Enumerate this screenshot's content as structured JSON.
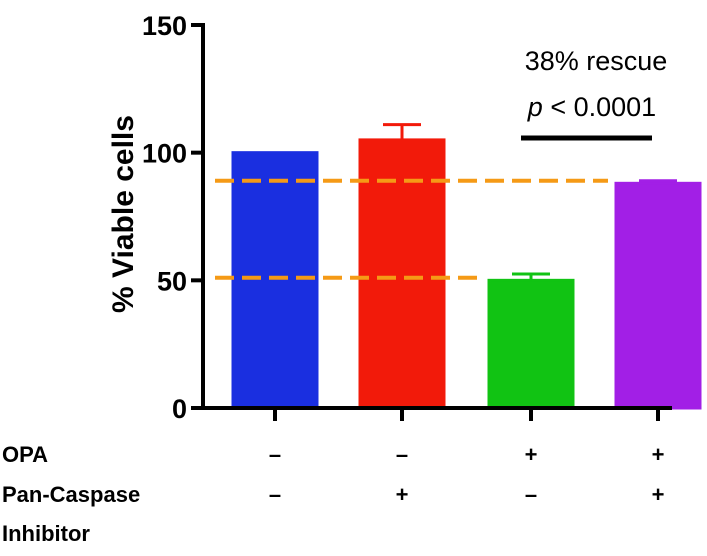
{
  "chart_data": {
    "type": "bar",
    "ylabel": "% Viable cells",
    "ylim": [
      0,
      150
    ],
    "yticks": [
      "0",
      "50",
      "100",
      "150"
    ],
    "bars": [
      {
        "value": 100,
        "error": 0,
        "color": "#1a2fe0"
      },
      {
        "value": 105,
        "error": 6,
        "color": "#f21a0a"
      },
      {
        "value": 50,
        "error": 2.5,
        "color": "#11c313"
      },
      {
        "value": 88,
        "error": 1,
        "color": "#a21fe6"
      }
    ],
    "reference_lines": [
      {
        "y": 89,
        "color": "#f59a16",
        "style": "dashed"
      },
      {
        "y": 51,
        "color": "#f59a16",
        "style": "dashed"
      }
    ],
    "conditions": [
      {
        "label_lines": [
          "OPA"
        ],
        "marks": [
          "–",
          "–",
          "+",
          "+"
        ]
      },
      {
        "label_lines": [
          "Pan-Caspase",
          "Inhibitor"
        ],
        "marks": [
          "–",
          "+",
          "–",
          "+"
        ]
      }
    ],
    "annotation": {
      "line1": "38% rescue",
      "p_symbol": "p",
      "p_rest": " < 0.0001",
      "bracket_from_bar": 2,
      "bracket_to_bar": 3
    },
    "grid": false,
    "legend": "none"
  }
}
